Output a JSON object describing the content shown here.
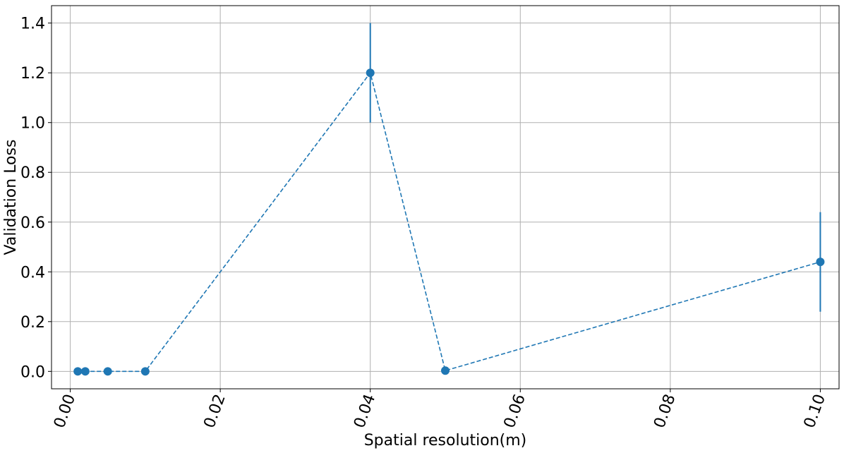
{
  "chart_data": {
    "type": "line",
    "title": "",
    "xlabel": "Spatial resolution(m)",
    "ylabel": "Validation Loss",
    "xlim": [
      -0.0025,
      0.1025
    ],
    "ylim": [
      -0.07,
      1.47
    ],
    "grid": true,
    "x_ticks": [
      0.0,
      0.02,
      0.04,
      0.06,
      0.08,
      0.1
    ],
    "x_tick_labels": [
      "0.00",
      "0.02",
      "0.04",
      "0.06",
      "0.08",
      "0.10"
    ],
    "x_tick_rotation_deg": 70,
    "y_ticks": [
      0.0,
      0.2,
      0.4,
      0.6,
      0.8,
      1.0,
      1.2,
      1.4
    ],
    "y_tick_labels": [
      "0.0",
      "0.2",
      "0.4",
      "0.6",
      "0.8",
      "1.0",
      "1.2",
      "1.4"
    ],
    "series": [
      {
        "color": "#1f77b4",
        "line_style": "dashed",
        "marker": "circle",
        "points": [
          {
            "x": 0.001,
            "y": 0.0,
            "err": 0.0
          },
          {
            "x": 0.002,
            "y": 0.0,
            "err": 0.0
          },
          {
            "x": 0.005,
            "y": 0.0,
            "err": 0.0
          },
          {
            "x": 0.01,
            "y": 0.0,
            "err": 0.0
          },
          {
            "x": 0.04,
            "y": 1.2,
            "err": 0.2
          },
          {
            "x": 0.05,
            "y": 0.003,
            "err": 0.0
          },
          {
            "x": 0.1,
            "y": 0.44,
            "err": 0.2
          }
        ]
      }
    ]
  }
}
